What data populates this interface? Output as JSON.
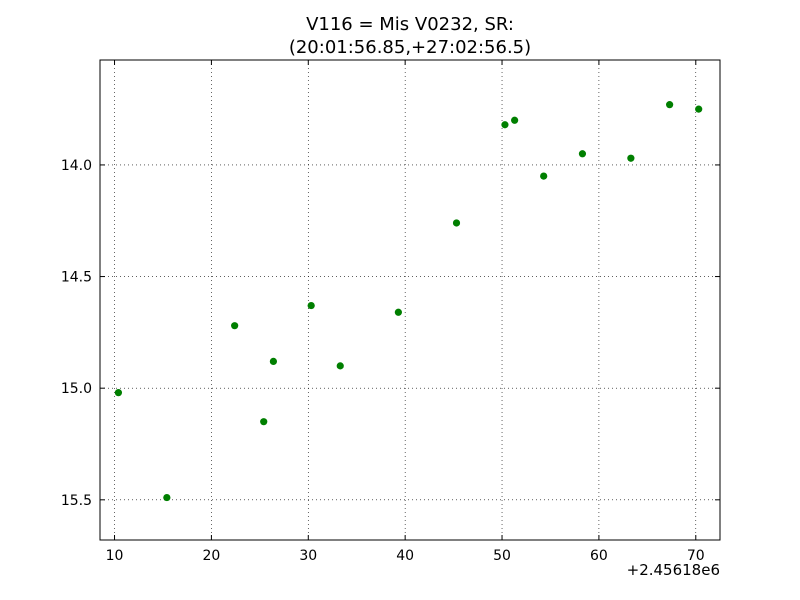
{
  "chart_data": {
    "type": "scatter",
    "title": [
      "V116 = Mis V0232, SR:",
      "(20:01:56.85,+27:02:56.5)"
    ],
    "xlabel": "",
    "ylabel": "",
    "x_offset_label": "+2.45618e6",
    "xlim": [
      8.5,
      72.5
    ],
    "ylim": [
      15.68,
      13.53
    ],
    "y_inverted": true,
    "xticks": [
      10,
      20,
      30,
      40,
      50,
      60,
      70
    ],
    "xtick_labels": [
      "10",
      "20",
      "30",
      "40",
      "50",
      "60",
      "70"
    ],
    "yticks": [
      14.0,
      14.5,
      15.0,
      15.5
    ],
    "ytick_labels": [
      "14.0",
      "14.5",
      "15.0",
      "15.5"
    ],
    "grid": true,
    "marker_color": "#007f00",
    "points": [
      {
        "x": 10.4,
        "y": 15.02
      },
      {
        "x": 15.4,
        "y": 15.49
      },
      {
        "x": 22.4,
        "y": 14.72
      },
      {
        "x": 25.4,
        "y": 15.15
      },
      {
        "x": 26.4,
        "y": 14.88
      },
      {
        "x": 30.3,
        "y": 14.63
      },
      {
        "x": 33.3,
        "y": 14.9
      },
      {
        "x": 39.3,
        "y": 14.66
      },
      {
        "x": 45.3,
        "y": 14.26
      },
      {
        "x": 50.3,
        "y": 13.82
      },
      {
        "x": 51.3,
        "y": 13.8
      },
      {
        "x": 54.3,
        "y": 14.05
      },
      {
        "x": 58.3,
        "y": 13.95
      },
      {
        "x": 63.3,
        "y": 13.97
      },
      {
        "x": 67.3,
        "y": 13.73
      },
      {
        "x": 70.3,
        "y": 13.75
      }
    ]
  }
}
